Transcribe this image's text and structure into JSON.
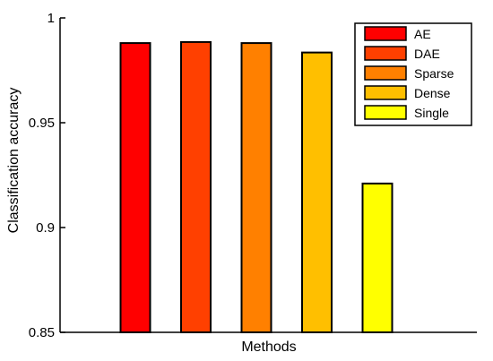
{
  "chart_data": {
    "type": "bar",
    "title": "",
    "xlabel": "Methods",
    "ylabel": "Classification accuracy",
    "ylim": [
      0.85,
      1
    ],
    "yticks": [
      "0.85",
      "0.9",
      "0.95",
      "1"
    ],
    "grid": false,
    "legend_position": "top-right",
    "categories": [
      "AE",
      "DAE",
      "Sparse",
      "Dense",
      "Single"
    ],
    "values": [
      0.988,
      0.9885,
      0.988,
      0.9835,
      0.921
    ],
    "colors": [
      "#ff0000",
      "#ff4000",
      "#ff8000",
      "#ffbf00",
      "#ffff00"
    ]
  }
}
